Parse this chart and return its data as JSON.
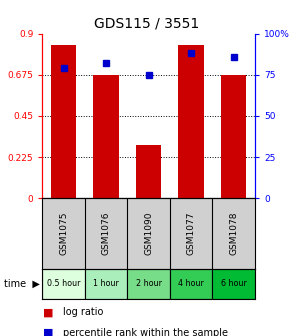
{
  "title": "GDS115 / 3551",
  "samples": [
    "GSM1075",
    "GSM1076",
    "GSM1090",
    "GSM1077",
    "GSM1078"
  ],
  "time_labels": [
    "0.5 hour",
    "1 hour",
    "2 hour",
    "4 hour",
    "6 hour"
  ],
  "time_colors": [
    "#ddffdd",
    "#aaeebb",
    "#77dd88",
    "#33cc55",
    "#00bb33"
  ],
  "log_ratio": [
    0.84,
    0.675,
    0.29,
    0.84,
    0.675
  ],
  "percentile": [
    79,
    82,
    75,
    88,
    86
  ],
  "bar_color": "#cc0000",
  "dot_color": "#0000cc",
  "ylim_left": [
    0,
    0.9
  ],
  "ylim_right": [
    0,
    100
  ],
  "yticks_left": [
    0,
    0.225,
    0.45,
    0.675,
    0.9
  ],
  "yticks_right": [
    0,
    25,
    50,
    75,
    100
  ],
  "ytick_labels_left": [
    "0",
    "0.225",
    "0.45",
    "0.675",
    "0.9"
  ],
  "ytick_labels_right": [
    "0",
    "25",
    "50",
    "75",
    "100%"
  ],
  "hlines": [
    0.225,
    0.45,
    0.675
  ],
  "bar_width": 0.6,
  "gray_bg": "#d0d0d0"
}
